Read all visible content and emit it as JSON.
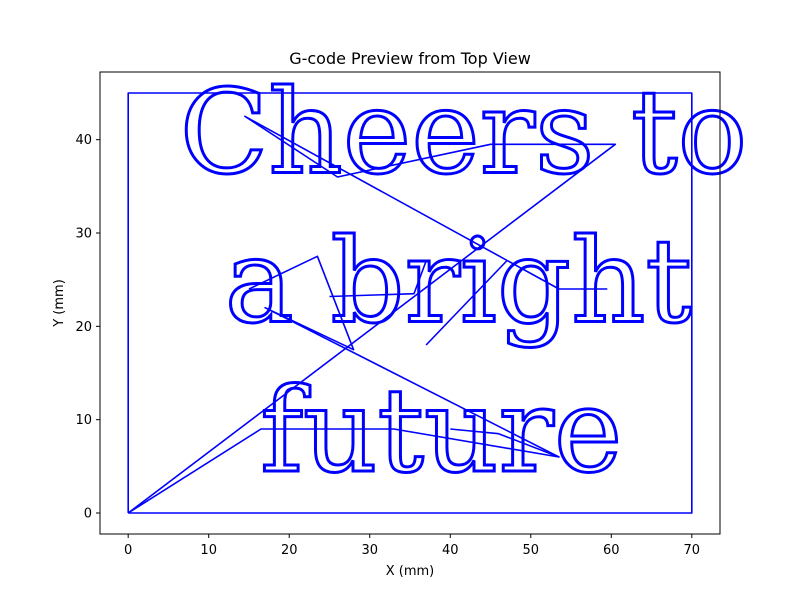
{
  "chart_data": {
    "type": "line",
    "title": "G-code Preview from Top View",
    "xlabel": "X (mm)",
    "ylabel": "Y (mm)",
    "xlim": [
      -3.5,
      73.5
    ],
    "ylim": [
      -2.25,
      47.25
    ],
    "xticks": [
      0,
      10,
      20,
      30,
      40,
      50,
      60,
      70
    ],
    "yticks": [
      0,
      10,
      20,
      30,
      40
    ],
    "grid": false,
    "line_color": "#0000ff",
    "series": [
      {
        "kind": "border",
        "points": [
          [
            0,
            0
          ],
          [
            70,
            0
          ],
          [
            70,
            45
          ],
          [
            0,
            45
          ],
          [
            0,
            0
          ]
        ]
      },
      {
        "kind": "travel",
        "points": [
          [
            0,
            0
          ],
          [
            60.5,
            39.5
          ],
          [
            45,
            39.5
          ],
          [
            26,
            36
          ],
          [
            14.5,
            42.5
          ],
          [
            53.5,
            24
          ],
          [
            59.5,
            24
          ]
        ]
      },
      {
        "kind": "travel",
        "points": [
          [
            0,
            0
          ],
          [
            16.5,
            9
          ],
          [
            33,
            9
          ],
          [
            53.5,
            6
          ],
          [
            17,
            22
          ],
          [
            28,
            17.5
          ],
          [
            23.5,
            27.5
          ],
          [
            15,
            24
          ]
        ]
      },
      {
        "kind": "travel",
        "points": [
          [
            25,
            23.2
          ],
          [
            35.5,
            23.5
          ],
          [
            37,
            27
          ]
        ]
      },
      {
        "kind": "travel",
        "points": [
          [
            37,
            18
          ],
          [
            47,
            27
          ]
        ]
      },
      {
        "kind": "travel",
        "points": [
          [
            40,
            9
          ],
          [
            46,
            8.5
          ],
          [
            53.5,
            6
          ]
        ]
      }
    ],
    "text_paths": [
      {
        "text": "Cheers to",
        "x": 6.4,
        "y": 36.5
      },
      {
        "text": "a bright",
        "x": 12.0,
        "y": 20.5
      },
      {
        "text": "future",
        "x": 16.4,
        "y": 4.5
      }
    ]
  }
}
